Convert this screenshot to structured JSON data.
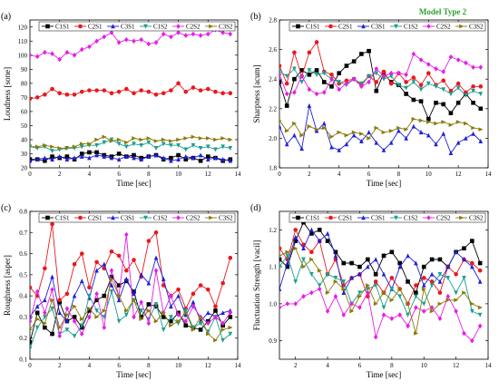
{
  "header": {
    "model_label": "Model Type 2"
  },
  "series_colors": {
    "C1S1": "#000000",
    "C2S1": "#e8191d",
    "C3S1": "#1f1fd9",
    "C1S2": "#1a9e8e",
    "C2S2": "#e61ee6",
    "C3S2": "#8a7a0a"
  },
  "chart_data": [
    {
      "type": "line",
      "panel_label": "(a)",
      "xlabel": "Time [sec]",
      "ylabel": "Loudness [sone]",
      "xlim": [
        0,
        14
      ],
      "ylim": [
        20,
        125
      ],
      "xticks": [
        0,
        2,
        4,
        6,
        8,
        10,
        12,
        14
      ],
      "yticks": [
        20,
        30,
        40,
        50,
        60,
        70,
        80,
        90,
        100,
        110,
        120
      ],
      "legend_position": "top",
      "x": [
        0,
        0.5,
        1,
        1.5,
        2,
        2.5,
        3,
        3.5,
        4,
        4.5,
        5,
        5.5,
        6,
        6.5,
        7,
        7.5,
        8,
        8.5,
        9,
        9.5,
        10,
        10.5,
        11,
        11.5,
        12,
        12.5,
        13,
        13.5
      ],
      "series": [
        {
          "name": "C1S1",
          "marker": "square",
          "values": [
            26,
            26,
            25,
            28,
            27,
            28,
            26,
            30,
            31,
            31,
            29,
            28,
            30,
            28,
            29,
            27,
            28,
            29,
            26,
            27,
            29,
            26,
            27,
            25,
            28,
            27,
            25,
            26
          ]
        },
        {
          "name": "C2S1",
          "marker": "circle",
          "values": [
            69,
            70,
            72,
            76,
            73,
            72,
            72,
            74,
            75,
            75,
            75,
            73,
            74,
            76,
            73,
            75,
            74,
            72,
            73,
            75,
            80,
            74,
            77,
            75,
            76,
            74,
            73,
            73
          ]
        },
        {
          "name": "C3S1",
          "marker": "triangle-up",
          "values": [
            25,
            26,
            27,
            26,
            28,
            26,
            27,
            28,
            27,
            29,
            28,
            27,
            26,
            28,
            27,
            26,
            28,
            29,
            27,
            25,
            26,
            28,
            27,
            29,
            26,
            27,
            26,
            25
          ]
        },
        {
          "name": "C1S2",
          "marker": "triangle-down",
          "values": [
            35,
            34,
            35,
            32,
            33,
            34,
            34,
            35,
            36,
            36,
            38,
            40,
            37,
            35,
            37,
            36,
            38,
            34,
            37,
            36,
            36,
            33,
            36,
            34,
            35,
            33,
            35,
            34
          ]
        },
        {
          "name": "C2S2",
          "marker": "diamond",
          "values": [
            100,
            99,
            102,
            101,
            97,
            102,
            100,
            104,
            106,
            110,
            113,
            116,
            109,
            111,
            110,
            111,
            108,
            109,
            115,
            113,
            116,
            114,
            115,
            114,
            115,
            118,
            116,
            115
          ]
        },
        {
          "name": "C3S2",
          "marker": "triangle-right",
          "values": [
            35,
            35,
            36,
            35,
            34,
            34,
            35,
            37,
            37,
            40,
            42,
            39,
            40,
            38,
            41,
            40,
            41,
            39,
            40,
            39,
            40,
            41,
            42,
            41,
            41,
            40,
            41,
            40
          ]
        }
      ]
    },
    {
      "type": "line",
      "panel_label": "(b)",
      "xlabel": "Time [sec]",
      "ylabel": "Sharpness [acum]",
      "xlim": [
        0,
        14
      ],
      "ylim": [
        1.8,
        2.8
      ],
      "xticks": [
        0,
        2,
        4,
        6,
        8,
        10,
        12,
        14
      ],
      "yticks": [
        1.8,
        2.0,
        2.2,
        2.4,
        2.6,
        2.8
      ],
      "legend_position": "top",
      "x": [
        0,
        0.5,
        1,
        1.5,
        2,
        2.5,
        3,
        3.5,
        4,
        4.5,
        5,
        5.5,
        6,
        6.5,
        7,
        7.5,
        8,
        8.5,
        9,
        9.5,
        10,
        10.5,
        11,
        11.5,
        12,
        12.5,
        13,
        13.5
      ],
      "series": [
        {
          "name": "C1S1",
          "marker": "square",
          "values": [
            2.38,
            2.22,
            2.4,
            2.46,
            2.43,
            2.46,
            2.38,
            2.35,
            2.44,
            2.49,
            2.52,
            2.57,
            2.59,
            2.32,
            2.44,
            2.38,
            2.36,
            2.3,
            2.26,
            2.25,
            2.13,
            2.24,
            2.23,
            2.17,
            2.24,
            2.3,
            2.24,
            2.2
          ]
        },
        {
          "name": "C2S1",
          "marker": "circle",
          "values": [
            2.49,
            2.37,
            2.58,
            2.42,
            2.58,
            2.65,
            2.45,
            2.43,
            2.37,
            2.39,
            2.4,
            2.36,
            2.42,
            2.38,
            2.45,
            2.37,
            2.44,
            2.38,
            2.41,
            2.36,
            2.44,
            2.36,
            2.39,
            2.32,
            2.37,
            2.31,
            2.35,
            2.35
          ]
        },
        {
          "name": "C3S1",
          "marker": "triangle-up",
          "values": [
            2.08,
            1.96,
            2.02,
            1.93,
            2.22,
            2.05,
            2.1,
            1.94,
            1.92,
            1.96,
            2.02,
            1.98,
            2.04,
            1.97,
            1.92,
            1.97,
            2.05,
            2.0,
            2.08,
            2.04,
            2.02,
            1.96,
            2.03,
            1.9,
            1.97,
            2.0,
            2.03,
            1.98
          ]
        },
        {
          "name": "C1S2",
          "marker": "triangle-down",
          "values": [
            2.45,
            2.42,
            2.47,
            2.38,
            2.46,
            2.43,
            2.44,
            2.4,
            2.38,
            2.36,
            2.4,
            2.37,
            2.42,
            2.44,
            2.4,
            2.42,
            2.36,
            2.34,
            2.38,
            2.33,
            2.37,
            2.35,
            2.33,
            2.3,
            2.34,
            2.29,
            2.32,
            2.3
          ]
        },
        {
          "name": "C2S2",
          "marker": "diamond",
          "values": [
            2.43,
            2.3,
            2.31,
            2.42,
            2.33,
            2.3,
            2.31,
            2.4,
            2.33,
            2.37,
            2.4,
            2.35,
            2.38,
            2.47,
            2.42,
            2.44,
            2.44,
            2.43,
            2.57,
            2.53,
            2.5,
            2.47,
            2.45,
            2.55,
            2.53,
            2.51,
            2.48,
            2.48
          ]
        },
        {
          "name": "C3S2",
          "marker": "triangle-right",
          "values": [
            2.12,
            2.05,
            2.1,
            2.02,
            2.08,
            2.06,
            2.07,
            2.01,
            2.04,
            2.02,
            2.04,
            2.03,
            2.0,
            2.07,
            2.04,
            2.05,
            2.07,
            2.06,
            2.13,
            2.12,
            2.11,
            2.1,
            2.11,
            2.09,
            2.11,
            2.1,
            2.07,
            2.06
          ]
        }
      ]
    },
    {
      "type": "line",
      "panel_label": "(c)",
      "xlabel": "Time [sec]",
      "ylabel": "Roughness [asper]",
      "xlim": [
        0,
        14
      ],
      "ylim": [
        0.1,
        0.8
      ],
      "xticks": [
        0,
        2,
        4,
        6,
        8,
        10,
        12,
        14
      ],
      "yticks": [
        0.1,
        0.2,
        0.3,
        0.4,
        0.5,
        0.6,
        0.7,
        0.8
      ],
      "legend_position": "top",
      "x": [
        0,
        0.5,
        1,
        1.5,
        2,
        2.5,
        3,
        3.5,
        4,
        4.5,
        5,
        5.5,
        6,
        6.5,
        7,
        7.5,
        8,
        8.5,
        9,
        9.5,
        10,
        10.5,
        11,
        11.5,
        12,
        12.5,
        13,
        13.5
      ],
      "series": [
        {
          "name": "C1S1",
          "marker": "square",
          "values": [
            0.18,
            0.32,
            0.25,
            0.22,
            0.37,
            0.28,
            0.3,
            0.25,
            0.33,
            0.38,
            0.4,
            0.49,
            0.45,
            0.47,
            0.42,
            0.3,
            0.36,
            0.35,
            0.3,
            0.28,
            0.32,
            0.26,
            0.25,
            0.24,
            0.28,
            0.33,
            0.26,
            0.3
          ]
        },
        {
          "name": "C2S1",
          "marker": "circle",
          "values": [
            0.44,
            0.4,
            0.53,
            0.74,
            0.38,
            0.41,
            0.55,
            0.6,
            0.44,
            0.56,
            0.53,
            0.61,
            0.59,
            0.52,
            0.57,
            0.49,
            0.66,
            0.7,
            0.45,
            0.4,
            0.43,
            0.34,
            0.41,
            0.45,
            0.43,
            0.35,
            0.46,
            0.58
          ]
        },
        {
          "name": "C3S1",
          "marker": "triangle-up",
          "values": [
            0.3,
            0.35,
            0.38,
            0.49,
            0.32,
            0.28,
            0.4,
            0.47,
            0.39,
            0.52,
            0.55,
            0.45,
            0.38,
            0.48,
            0.41,
            0.5,
            0.46,
            0.58,
            0.48,
            0.35,
            0.4,
            0.31,
            0.37,
            0.28,
            0.32,
            0.3,
            0.32,
            0.33
          ]
        },
        {
          "name": "C1S2",
          "marker": "triangle-down",
          "values": [
            0.15,
            0.25,
            0.3,
            0.34,
            0.22,
            0.24,
            0.21,
            0.26,
            0.4,
            0.33,
            0.3,
            0.42,
            0.28,
            0.31,
            0.38,
            0.33,
            0.29,
            0.36,
            0.24,
            0.3,
            0.27,
            0.33,
            0.25,
            0.27,
            0.23,
            0.3,
            0.19,
            0.22
          ]
        },
        {
          "name": "C2S2",
          "marker": "diamond",
          "values": [
            0.28,
            0.42,
            0.32,
            0.43,
            0.21,
            0.34,
            0.28,
            0.22,
            0.3,
            0.41,
            0.25,
            0.52,
            0.4,
            0.69,
            0.3,
            0.37,
            0.27,
            0.52,
            0.32,
            0.4,
            0.31,
            0.28,
            0.35,
            0.3,
            0.27,
            0.3,
            0.27,
            0.32
          ]
        },
        {
          "name": "C3S2",
          "marker": "triangle-right",
          "values": [
            0.24,
            0.29,
            0.27,
            0.38,
            0.25,
            0.31,
            0.35,
            0.29,
            0.34,
            0.3,
            0.33,
            0.48,
            0.4,
            0.33,
            0.38,
            0.29,
            0.33,
            0.28,
            0.32,
            0.26,
            0.28,
            0.32,
            0.24,
            0.3,
            0.22,
            0.19,
            0.24,
            0.25
          ]
        }
      ]
    },
    {
      "type": "line",
      "panel_label": "(d)",
      "xlabel": "Time [sec]",
      "ylabel": "Fluctuation Strength [vacil]",
      "xlim": [
        1,
        14
      ],
      "ylim": [
        0.85,
        1.25
      ],
      "xticks": [
        2,
        4,
        6,
        8,
        10,
        12,
        14
      ],
      "yticks": [
        0.9,
        1.0,
        1.1,
        1.2
      ],
      "legend_position": "top",
      "x": [
        1,
        1.5,
        2,
        2.5,
        3,
        3.5,
        4,
        4.5,
        5,
        5.5,
        6,
        6.5,
        7,
        7.5,
        8,
        8.5,
        9,
        9.5,
        10,
        10.5,
        11,
        11.5,
        12,
        12.5,
        13,
        13.5
      ],
      "series": [
        {
          "name": "C1S1",
          "marker": "square",
          "values": [
            1.12,
            1.1,
            1.17,
            1.22,
            1.19,
            1.2,
            1.17,
            1.14,
            1.11,
            1.11,
            1.1,
            1.12,
            1.08,
            1.13,
            1.14,
            1.11,
            1.06,
            1.03,
            1.1,
            1.12,
            1.12,
            1.1,
            1.14,
            1.15,
            1.17,
            1.11
          ]
        },
        {
          "name": "C2S1",
          "marker": "circle",
          "values": [
            1.15,
            1.12,
            1.2,
            1.16,
            1.14,
            1.17,
            1.08,
            1.12,
            1.05,
            1.07,
            1.08,
            1.02,
            1.06,
            1.03,
            1.07,
            1.04,
            1.0,
            1.05,
            1.07,
            1.06,
            1.03,
            1.1,
            1.08,
            1.12,
            1.11,
            1.09
          ]
        },
        {
          "name": "C3S1",
          "marker": "triangle-up",
          "values": [
            1.04,
            1.11,
            1.18,
            1.15,
            1.2,
            1.17,
            1.19,
            1.13,
            1.03,
            1.07,
            1.08,
            1.1,
            1.12,
            1.08,
            1.04,
            1.1,
            1.13,
            1.11,
            1.05,
            1.08,
            1.06,
            1.1,
            1.14,
            1.12,
            1.1,
            1.06
          ]
        },
        {
          "name": "C1S2",
          "marker": "triangle-down",
          "values": [
            1.1,
            1.13,
            1.06,
            1.12,
            1.08,
            1.05,
            1.08,
            1.07,
            1.06,
            1.0,
            1.03,
            1.04,
            1.05,
            0.99,
            1.04,
            1.02,
            0.97,
            1.02,
            1.0,
            1.05,
            1.08,
            1.07,
            1.03,
            1.07,
            0.98,
            0.97
          ]
        },
        {
          "name": "C2S2",
          "marker": "diamond",
          "values": [
            0.99,
            1.0,
            1.0,
            1.02,
            1.03,
            1.04,
            0.98,
            1.02,
            0.97,
            1.0,
            0.99,
            1.03,
            0.91,
            0.97,
            0.96,
            0.97,
            0.94,
            0.99,
            0.98,
            0.99,
            0.96,
            1.02,
            0.98,
            0.92,
            0.9,
            0.94
          ]
        },
        {
          "name": "C3S2",
          "marker": "triangle-right",
          "values": [
            1.13,
            1.14,
            1.15,
            1.1,
            1.12,
            1.09,
            1.03,
            1.06,
            1.04,
            0.98,
            1.02,
            1.05,
            1.0,
            1.03,
            1.01,
            1.04,
            1.0,
            0.92,
            1.04,
            0.98,
            1.0,
            1.01,
            1.01,
            1.03,
            1.0,
            0.99
          ]
        }
      ]
    }
  ]
}
